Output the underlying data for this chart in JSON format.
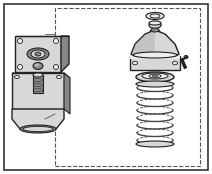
{
  "bg_color": "#ffffff",
  "border_color": "#333333",
  "line_color": "#333333",
  "part_fill": "#d8d8d8",
  "part_dark": "#888888",
  "part_light": "#eeeeee",
  "part_edge": "#222222",
  "spring_color": "#444444",
  "dash_color": "#555555",
  "figsize": [
    2.12,
    1.74
  ],
  "dpi": 100
}
